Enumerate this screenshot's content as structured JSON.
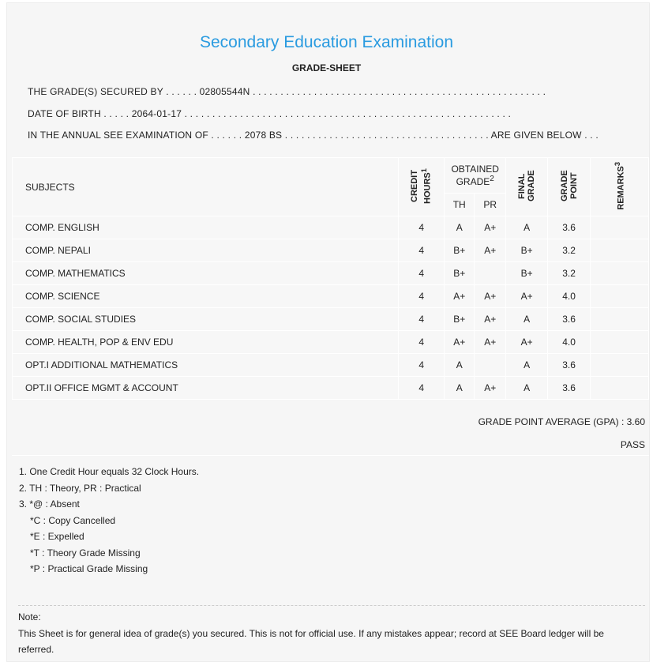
{
  "title": "Secondary Education Examination",
  "subtitle": "GRADE-SHEET",
  "info": {
    "secured_by": "THE GRADE(S) SECURED BY . . . . . . 02805544N . . . . . . . . . . . . . . . . . . . . . . . . . . . . . . . . . . . . . . . . . . . . . . . . . . . . .",
    "dob": "DATE OF BIRTH . . . . . 2064-01-17 . . . . . . . . . . . . . . . . . . . . . . . . . . . . . . . . . . . . . . . . . . . . . . . . . . . . . . . . . . .",
    "exam": "IN THE ANNUAL SEE EXAMINATION OF . . . . . . 2078 BS . . . . . . . . . . . . . . . . . . . . . . . . . . . . . . . . . . . . . ARE GIVEN BELOW . . ."
  },
  "headers": {
    "subjects": "SUBJECTS",
    "credit": "CREDIT HOURS",
    "credit_sup": "1",
    "obtained": "OBTAINED GRADE",
    "obtained_sup": "2",
    "th": "TH",
    "pr": "PR",
    "final": "FINAL GRADE",
    "point": "GRADE POINT",
    "remarks": "REMARKS",
    "remarks_sup": "3"
  },
  "rows": [
    {
      "subject": "COMP. ENGLISH",
      "credit": "4",
      "th": "A",
      "pr": "A+",
      "final": "A",
      "point": "3.6",
      "remarks": ""
    },
    {
      "subject": "COMP. NEPALI",
      "credit": "4",
      "th": "B+",
      "pr": "A+",
      "final": "B+",
      "point": "3.2",
      "remarks": ""
    },
    {
      "subject": "COMP. MATHEMATICS",
      "credit": "4",
      "th": "B+",
      "pr": "",
      "final": "B+",
      "point": "3.2",
      "remarks": ""
    },
    {
      "subject": "COMP. SCIENCE",
      "credit": "4",
      "th": "A+",
      "pr": "A+",
      "final": "A+",
      "point": "4.0",
      "remarks": ""
    },
    {
      "subject": "COMP. SOCIAL STUDIES",
      "credit": "4",
      "th": "B+",
      "pr": "A+",
      "final": "A",
      "point": "3.6",
      "remarks": ""
    },
    {
      "subject": "COMP. HEALTH, POP & ENV EDU",
      "credit": "4",
      "th": "A+",
      "pr": "A+",
      "final": "A+",
      "point": "4.0",
      "remarks": ""
    },
    {
      "subject": "OPT.I ADDITIONAL MATHEMATICS",
      "credit": "4",
      "th": "A",
      "pr": "",
      "final": "A",
      "point": "3.6",
      "remarks": ""
    },
    {
      "subject": "OPT.II OFFICE MGMT & ACCOUNT",
      "credit": "4",
      "th": "A",
      "pr": "A+",
      "final": "A",
      "point": "3.6",
      "remarks": ""
    }
  ],
  "gpa": "GRADE POINT AVERAGE (GPA) : 3.60",
  "result": "PASS",
  "footnotes": [
    "1. One Credit Hour equals 32 Clock Hours.",
    "2. TH : Theory, PR : Practical",
    "3. *@ : Absent",
    "*C : Copy Cancelled",
    "*E : Expelled",
    "*T : Theory Grade Missing",
    "*P : Practical Grade Missing"
  ],
  "note_label": "Note:",
  "note_text": "This Sheet is for general idea of grade(s) you secured. This is not for official use. If any mistakes appear; record at SEE Board ledger will be referred.",
  "colors": {
    "title": "#2a9be0"
  }
}
